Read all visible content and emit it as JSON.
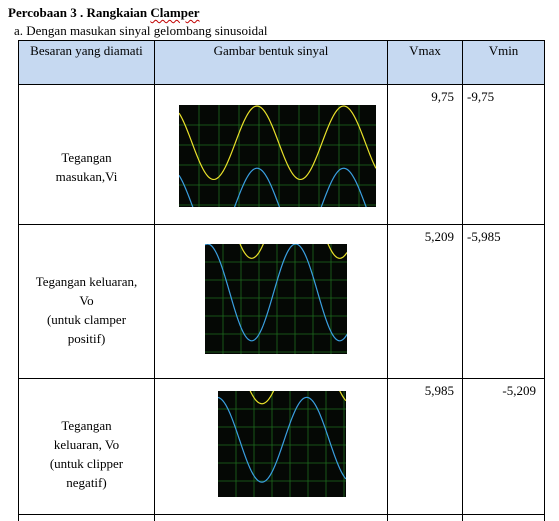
{
  "heading": {
    "prefix": "Percobaan 3 .  Rangkaian ",
    "underlined": "Clamper"
  },
  "subheading": "a. Dengan masukan sinyal gelombang sinusoidal",
  "table": {
    "headers": {
      "besaran": "Besaran yang diamati",
      "gambar": "Gambar bentuk sinyal",
      "vmax": "Vmax",
      "vmin": "Vmin"
    },
    "rows": [
      {
        "label_lines": [
          "Tegangan",
          "masukan,Vi"
        ],
        "vmax": "9,75",
        "vmin": "-9,75"
      },
      {
        "label_lines": [
          "Tegangan keluaran,",
          "Vo",
          "(untuk clamper",
          "positif)"
        ],
        "vmax": "5,209",
        "vmin": "-5,985"
      },
      {
        "label_lines": [
          "Tegangan",
          "keluaran, Vo",
          "(untuk clipper",
          "negatif)"
        ],
        "vmax": "5,985",
        "vmin": "-5,209"
      }
    ]
  },
  "colors": {
    "header_fill": "#c6d9f1",
    "scope_background": "#050805",
    "scope_grid": "#1e6b1e",
    "trace_yellow": "#e8e02a",
    "trace_blue": "#3a9fe0",
    "squiggle": "#c00000"
  }
}
